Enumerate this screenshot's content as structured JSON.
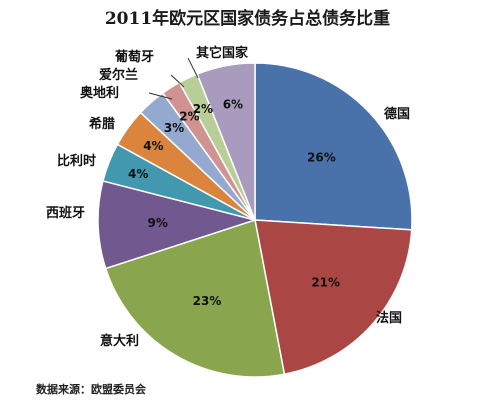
{
  "chart_data": {
    "type": "pie",
    "title": "2011年欧元区国家债务占总债务比重",
    "slices": [
      {
        "label": "德国",
        "value": 26,
        "value_label": "26%",
        "color": "#4a72aa"
      },
      {
        "label": "法国",
        "value": 21,
        "value_label": "21%",
        "color": "#aa4643"
      },
      {
        "label": "意大利",
        "value": 23,
        "value_label": "23%",
        "color": "#89a54e"
      },
      {
        "label": "西班牙",
        "value": 9,
        "value_label": "9%",
        "color": "#71588f"
      },
      {
        "label": "比利时",
        "value": 4,
        "value_label": "4%",
        "color": "#4198af"
      },
      {
        "label": "希腊",
        "value": 4,
        "value_label": "4%",
        "color": "#db843d"
      },
      {
        "label": "奥地利",
        "value": 3,
        "value_label": "3%",
        "color": "#93a9cf"
      },
      {
        "label": "爱尔兰",
        "value": 2,
        "value_label": "2%",
        "color": "#d19392"
      },
      {
        "label": "葡萄牙",
        "value": 2,
        "value_label": "2%",
        "color": "#b9cd96"
      },
      {
        "label": "其它国家",
        "value": 6,
        "value_label": "6%",
        "color": "#a99bbd"
      }
    ],
    "start_direction": "top",
    "rotation": "clockwise"
  },
  "source_note": "数据来源：欧盟委员会"
}
